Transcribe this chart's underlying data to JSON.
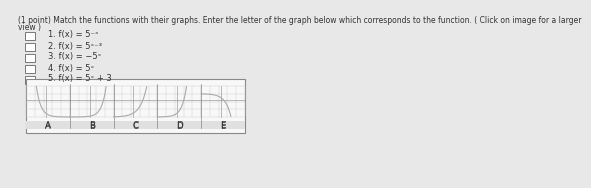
{
  "title_text": "(1 point) Match the functions with their graphs. Enter the letter of the graph below which corresponds to the function. ( Click on image for a larger\nview )",
  "functions": [
    "1. f(x) = 5^{-x}",
    "2. f(x) = 5^{x-3}",
    "3. f(x) = -5^{x}",
    "4. f(x) = 5^{x}",
    "5. f(x) = 5^{x} + 3"
  ],
  "graph_labels": [
    "A",
    "B",
    "C",
    "D",
    "E"
  ],
  "background_color": "#e8e8e8",
  "panel_background": "#f5f5f5",
  "graph_border_color": "#999999",
  "curve_color": "#aaaaaa",
  "text_color": "#333333",
  "box_color": "#ffffff"
}
